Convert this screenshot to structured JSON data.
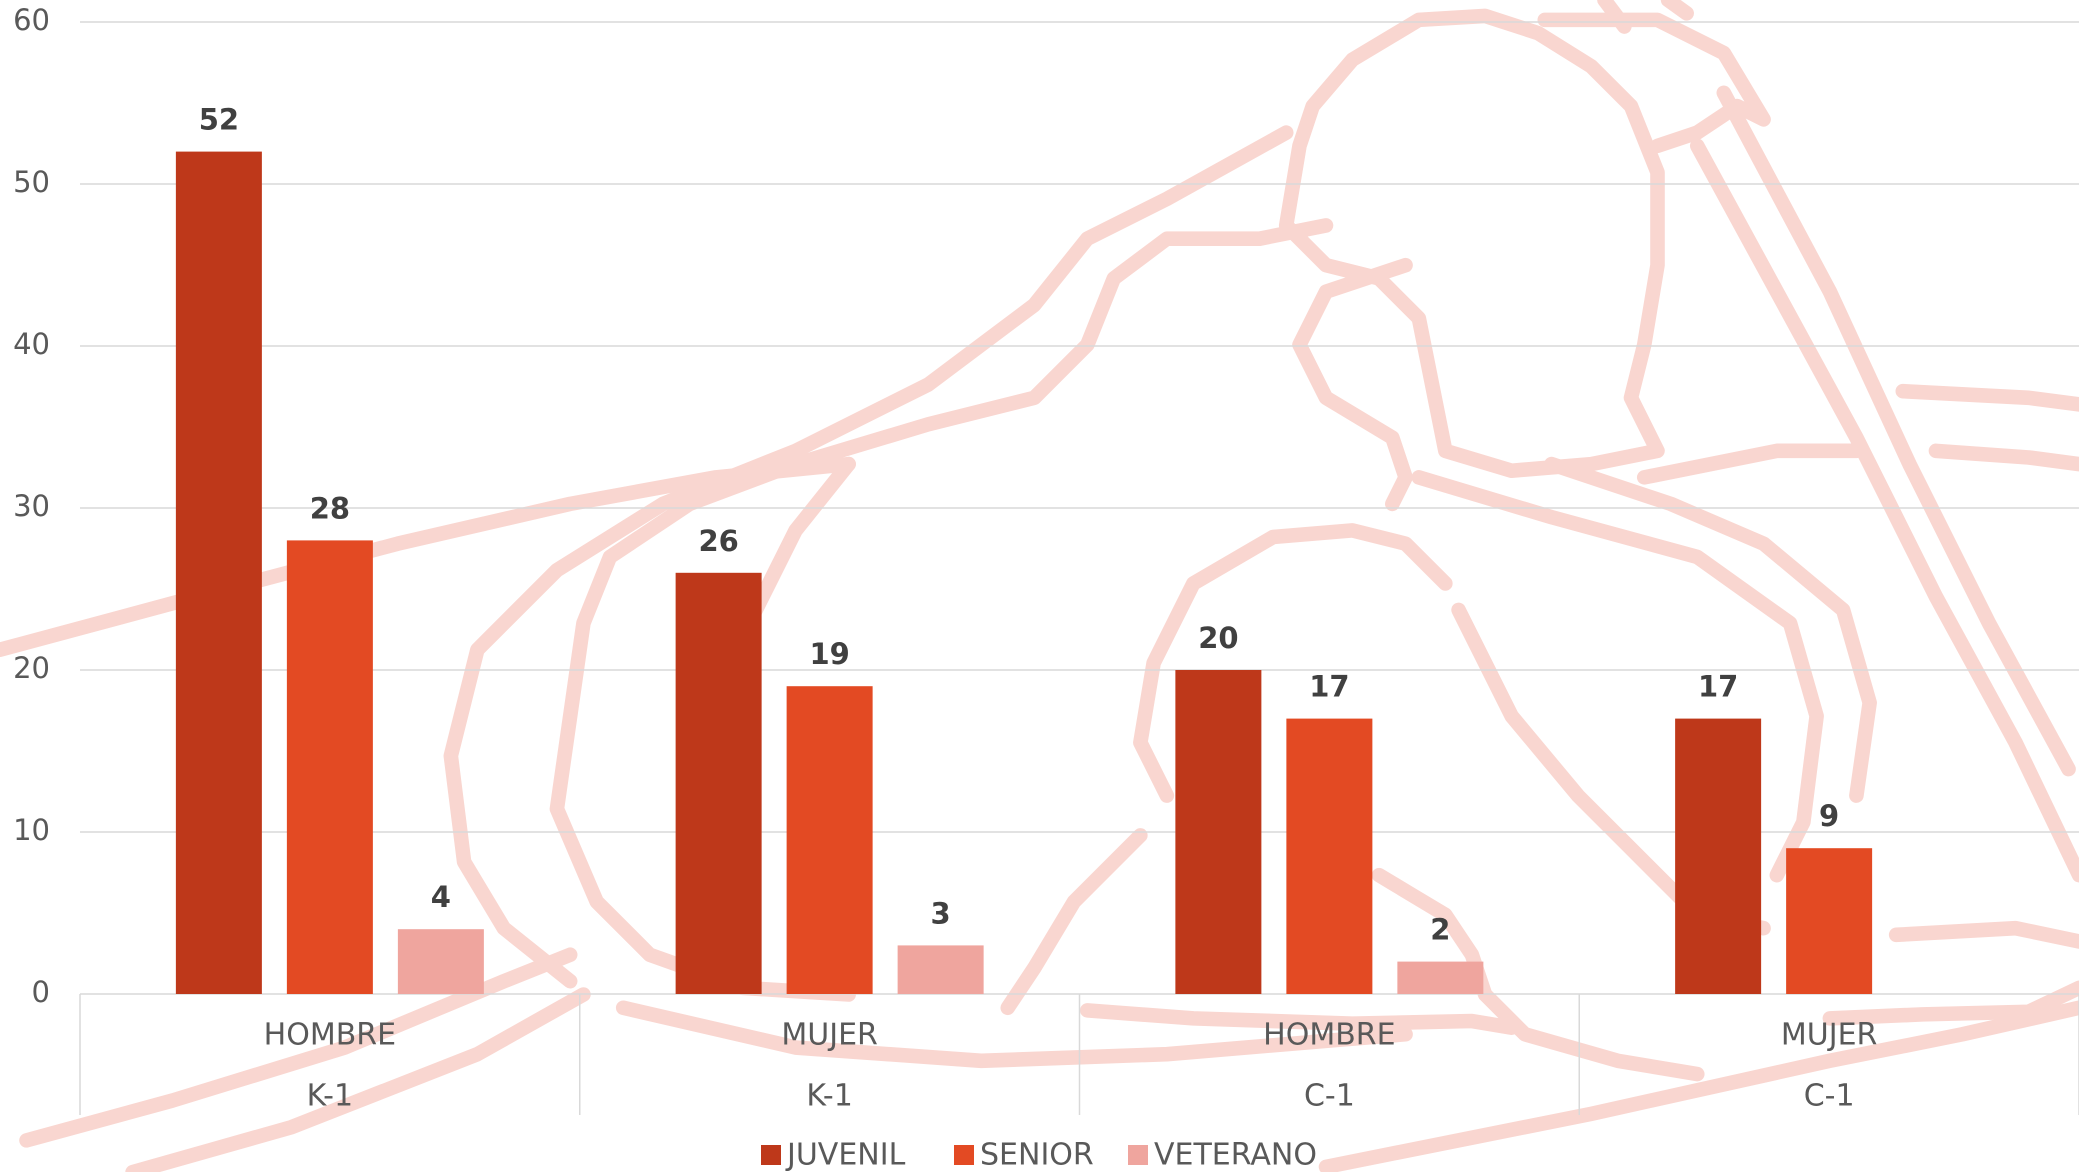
{
  "chart_data": {
    "type": "bar",
    "categories": [
      "HOMBRE",
      "MUJER",
      "HOMBRE",
      "MUJER"
    ],
    "groups": [
      "K-1",
      "K-1",
      "C-1",
      "C-1"
    ],
    "series": [
      {
        "name": "JUVENIL",
        "color": "#be381a",
        "values": [
          52,
          26,
          20,
          17
        ]
      },
      {
        "name": "SENIOR",
        "color": "#e34a23",
        "values": [
          28,
          19,
          17,
          9
        ]
      },
      {
        "name": "VETERANO",
        "color": "#efa59e",
        "values": [
          4,
          3,
          2,
          null
        ]
      }
    ],
    "ylim": [
      0,
      60
    ],
    "yticks": [
      0,
      10,
      20,
      30,
      40,
      50,
      60
    ],
    "grid": true,
    "legend": "bottom"
  }
}
